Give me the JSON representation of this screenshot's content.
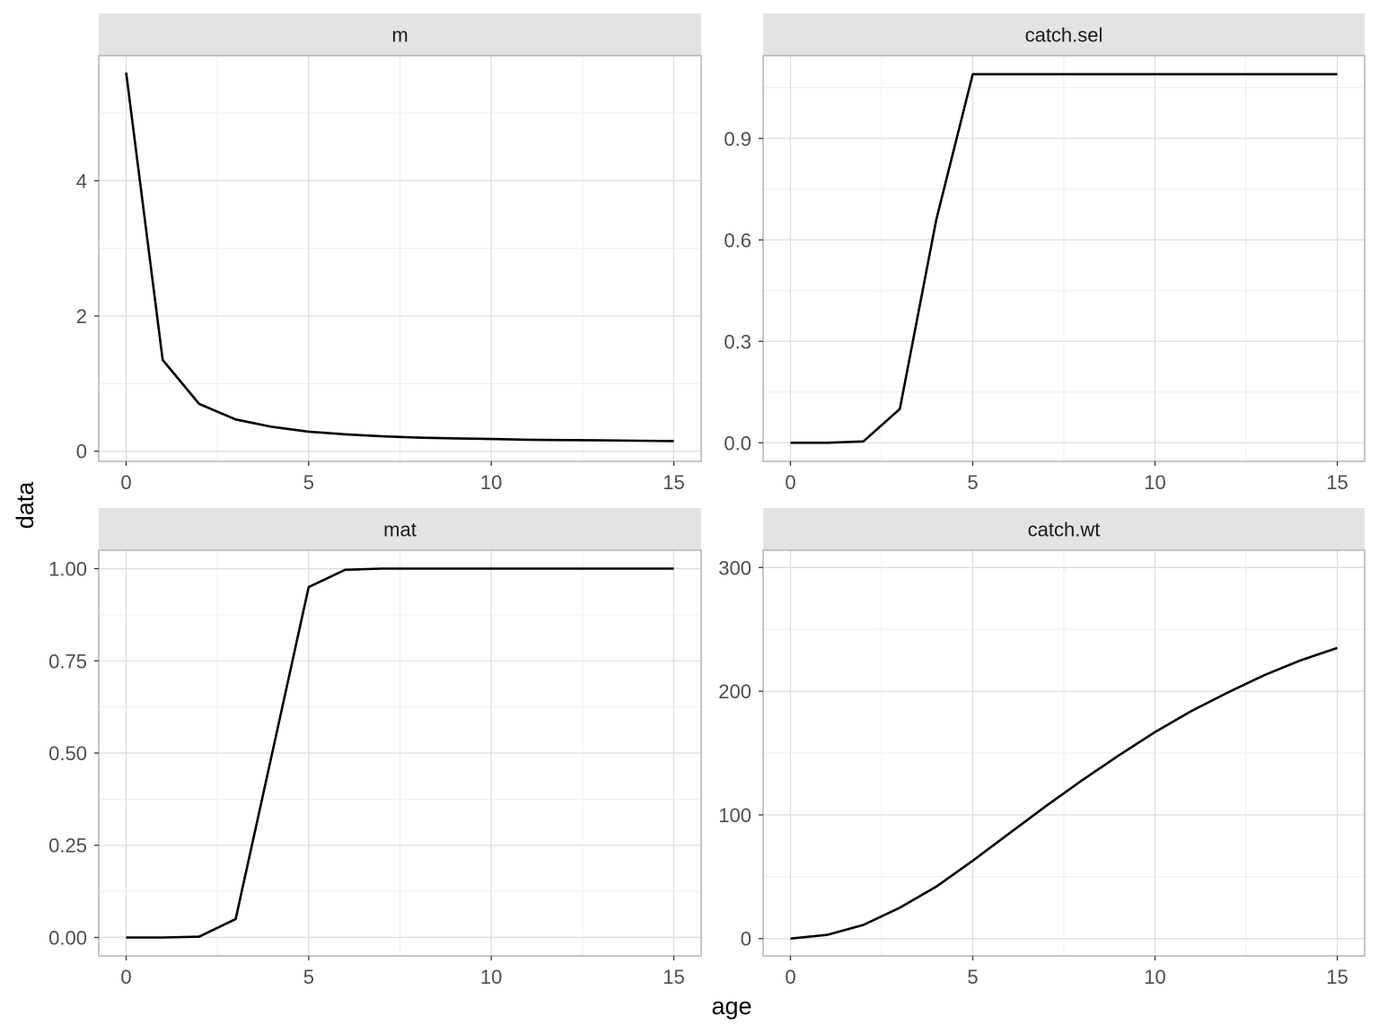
{
  "xlabel": "age",
  "ylabel": "data",
  "colors": {
    "line": "#000000",
    "strip_bg": "#e3e3e3",
    "panel_border": "#b3b3b3",
    "grid_major": "#dedede",
    "grid_minor": "#eeeeee"
  },
  "chart_data": [
    {
      "type": "line",
      "title": "m",
      "xlabel": "age",
      "ylabel": "data",
      "xlim": [
        -0.75,
        15.75
      ],
      "ylim": [
        -0.15,
        5.85
      ],
      "x_ticks": [
        0,
        5,
        10,
        15
      ],
      "y_ticks": [
        0,
        2,
        4
      ],
      "x_tick_labels": [
        "0",
        "5",
        "10",
        "15"
      ],
      "y_tick_labels": [
        "0",
        "2",
        "4"
      ],
      "grid": true,
      "x": [
        0,
        1,
        2,
        3,
        4,
        5,
        6,
        7,
        8,
        9,
        10,
        11,
        12,
        13,
        14,
        15
      ],
      "values": [
        5.6,
        1.35,
        0.7,
        0.47,
        0.36,
        0.29,
        0.25,
        0.22,
        0.2,
        0.19,
        0.18,
        0.17,
        0.165,
        0.16,
        0.155,
        0.15
      ]
    },
    {
      "type": "line",
      "title": "catch.sel",
      "xlabel": "age",
      "ylabel": "data",
      "xlim": [
        -0.75,
        15.75
      ],
      "ylim": [
        -0.055,
        1.145
      ],
      "x_ticks": [
        0,
        5,
        10,
        15
      ],
      "y_ticks": [
        0,
        0.3,
        0.6,
        0.9
      ],
      "x_tick_labels": [
        "0",
        "5",
        "10",
        "15"
      ],
      "y_tick_labels": [
        "0.0",
        "0.3",
        "0.6",
        "0.9"
      ],
      "grid": true,
      "x": [
        0,
        1,
        2,
        3,
        4,
        5,
        6,
        7,
        8,
        9,
        10,
        11,
        12,
        13,
        14,
        15
      ],
      "values": [
        0,
        0,
        0.004,
        0.1,
        0.66,
        1.09,
        1.09,
        1.09,
        1.09,
        1.09,
        1.09,
        1.09,
        1.09,
        1.09,
        1.09,
        1.09
      ]
    },
    {
      "type": "line",
      "title": "mat",
      "xlabel": "age",
      "ylabel": "data",
      "xlim": [
        -0.75,
        15.75
      ],
      "ylim": [
        -0.05,
        1.05
      ],
      "x_ticks": [
        0,
        5,
        10,
        15
      ],
      "y_ticks": [
        0,
        0.25,
        0.5,
        0.75,
        1.0
      ],
      "x_tick_labels": [
        "0",
        "5",
        "10",
        "15"
      ],
      "y_tick_labels": [
        "0.00",
        "0.25",
        "0.50",
        "0.75",
        "1.00"
      ],
      "grid": true,
      "x": [
        0,
        1,
        2,
        3,
        4,
        5,
        6,
        7,
        8,
        9,
        10,
        11,
        12,
        13,
        14,
        15
      ],
      "values": [
        0,
        0,
        0.002,
        0.05,
        0.5,
        0.95,
        0.997,
        1,
        1,
        1,
        1,
        1,
        1,
        1,
        1,
        1
      ]
    },
    {
      "type": "line",
      "title": "catch.wt",
      "xlabel": "age",
      "ylabel": "data",
      "xlim": [
        -0.75,
        15.75
      ],
      "ylim": [
        -14,
        314
      ],
      "x_ticks": [
        0,
        5,
        10,
        15
      ],
      "y_ticks": [
        0,
        100,
        200,
        300
      ],
      "x_tick_labels": [
        "0",
        "5",
        "10",
        "15"
      ],
      "y_tick_labels": [
        "0",
        "100",
        "200",
        "300"
      ],
      "grid": true,
      "x": [
        0,
        1,
        2,
        3,
        4,
        5,
        6,
        7,
        8,
        9,
        10,
        11,
        12,
        13,
        14,
        15
      ],
      "values": [
        0,
        3,
        11,
        25,
        42,
        63,
        85,
        107,
        128,
        148,
        167,
        184,
        199,
        213,
        225,
        235
      ]
    }
  ]
}
